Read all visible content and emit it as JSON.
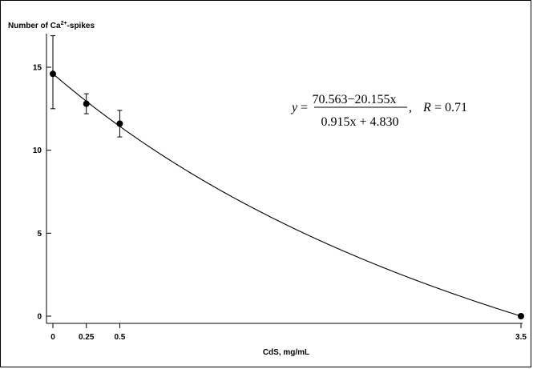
{
  "chart_data": {
    "type": "scatter",
    "ylabel": "Number of Ca",
    "ylabel_sup": "2+",
    "ylabel_suffix": "-spikes",
    "xlabel": "CdS, mg/mL",
    "x_ticks": [
      "0",
      "0.25",
      "0.5",
      "3.5"
    ],
    "y_ticks": [
      "0",
      "5",
      "10",
      "15"
    ],
    "xlim": [
      0,
      3.5
    ],
    "ylim": [
      0,
      17.5
    ],
    "points": [
      {
        "x": 0,
        "y": 14.6,
        "err_low": 12.5,
        "err_high": 16.9
      },
      {
        "x": 0.25,
        "y": 12.8,
        "err_low": 12.2,
        "err_high": 13.4
      },
      {
        "x": 0.5,
        "y": 11.6,
        "err_low": 10.8,
        "err_high": 12.4
      },
      {
        "x": 3.5,
        "y": 0,
        "err_low": 0,
        "err_high": 0
      }
    ],
    "fit": {
      "a": 70.563,
      "b": 20.155,
      "c": 0.915,
      "d": 4.83
    },
    "equation": {
      "lhs": "y",
      "equals": "=",
      "numerator": "70.563−20.155x",
      "denominator": "0.915x + 4.830",
      "comma": ",",
      "r_label": "R",
      "r_value": "= 0.71"
    },
    "grid": false
  }
}
